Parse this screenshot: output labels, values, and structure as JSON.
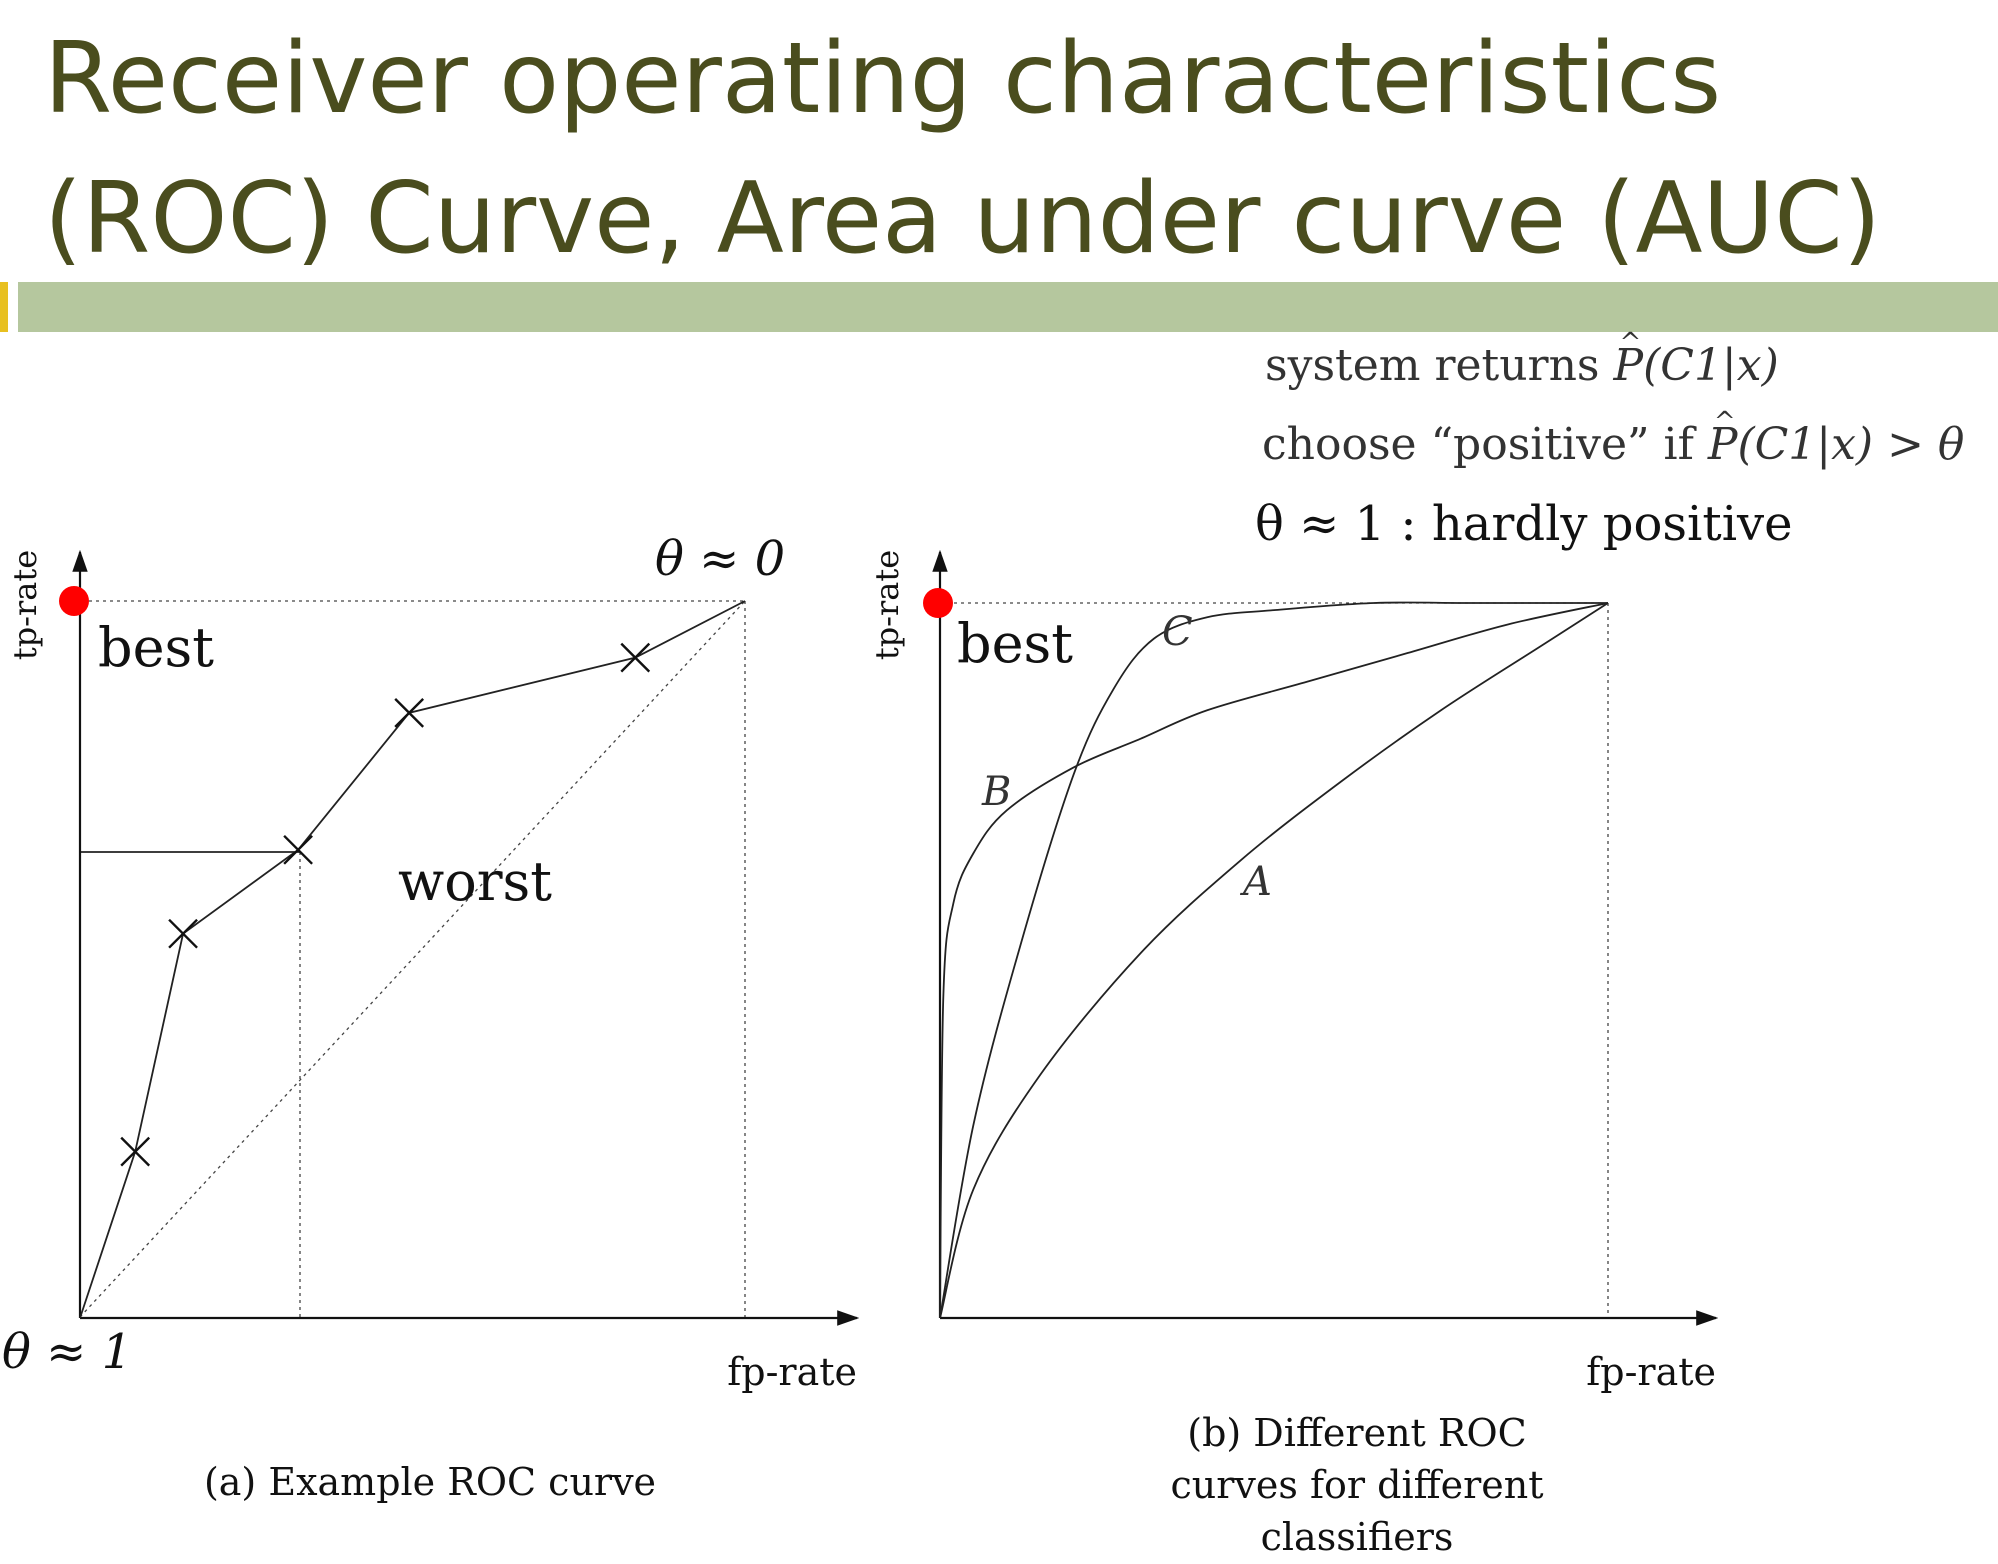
{
  "slide": {
    "title_line1": "Receiver operating characteristics",
    "title_line2": "(ROC) Curve, Area under curve (AUC)"
  },
  "notes": {
    "line1_text": "system returns",
    "line1_math": "P(C1|x)",
    "line2_text_a": "choose “positive” if",
    "line2_math": "P(C1|x) > θ",
    "line3": "θ ≈ 1 : hardly positive"
  },
  "colors": {
    "title": "#4a4d1e",
    "rule": "#b5c79e",
    "best_marker": "#ff0000",
    "ink": "#111111"
  },
  "chart_data": [
    {
      "type": "line",
      "caption": "(a) Example ROC curve",
      "xlabel": "fp-rate",
      "ylabel": "tp-rate",
      "xlim": [
        0,
        1
      ],
      "ylim": [
        0,
        1
      ],
      "series": [
        {
          "x": [
            0,
            0.083,
            0.155,
            0.328,
            0.495,
            0.835,
            1
          ],
          "y": [
            0,
            0.232,
            0.536,
            0.653,
            0.844,
            0.921,
            1
          ],
          "markers": [
            {
              "x": 0.083,
              "y": 0.232
            },
            {
              "x": 0.155,
              "y": 0.536
            },
            {
              "x": 0.328,
              "y": 0.653
            },
            {
              "x": 0.495,
              "y": 0.844
            },
            {
              "x": 0.835,
              "y": 0.921
            }
          ]
        }
      ],
      "diagonal": {
        "label": "worst"
      },
      "best_point": {
        "x": 0,
        "y": 1,
        "label": "best"
      },
      "threshold_labels": {
        "top_right": "θ ≈ 0",
        "origin": "θ ≈ 1"
      },
      "guide_point": {
        "x": 0.328,
        "y": 0.653
      }
    },
    {
      "type": "line",
      "caption_lines": [
        "(b) Different ROC",
        "curves for different",
        "classifiers"
      ],
      "xlabel": "fp-rate",
      "ylabel": "tp-rate",
      "xlim": [
        0,
        1
      ],
      "ylim": [
        0,
        1
      ],
      "series": [
        {
          "name": "A",
          "x": [
            0,
            0.05,
            0.15,
            0.3,
            0.45,
            0.6,
            0.75,
            0.9,
            1
          ],
          "y": [
            0,
            0.18,
            0.34,
            0.51,
            0.64,
            0.75,
            0.85,
            0.94,
            1
          ]
        },
        {
          "name": "B",
          "x": [
            0,
            0.005,
            0.02,
            0.05,
            0.1,
            0.2,
            0.3,
            0.4,
            0.55,
            0.7,
            0.85,
            1
          ],
          "y": [
            0,
            0.45,
            0.58,
            0.65,
            0.71,
            0.77,
            0.81,
            0.85,
            0.89,
            0.93,
            0.97,
            1
          ]
        },
        {
          "name": "C",
          "x": [
            0,
            0.05,
            0.12,
            0.2,
            0.26,
            0.32,
            0.4,
            0.5,
            0.65,
            0.8,
            1
          ],
          "y": [
            0,
            0.27,
            0.52,
            0.76,
            0.88,
            0.95,
            0.98,
            0.99,
            1,
            1,
            1
          ]
        }
      ],
      "best_point": {
        "x": 0,
        "y": 1,
        "label": "best"
      }
    }
  ]
}
